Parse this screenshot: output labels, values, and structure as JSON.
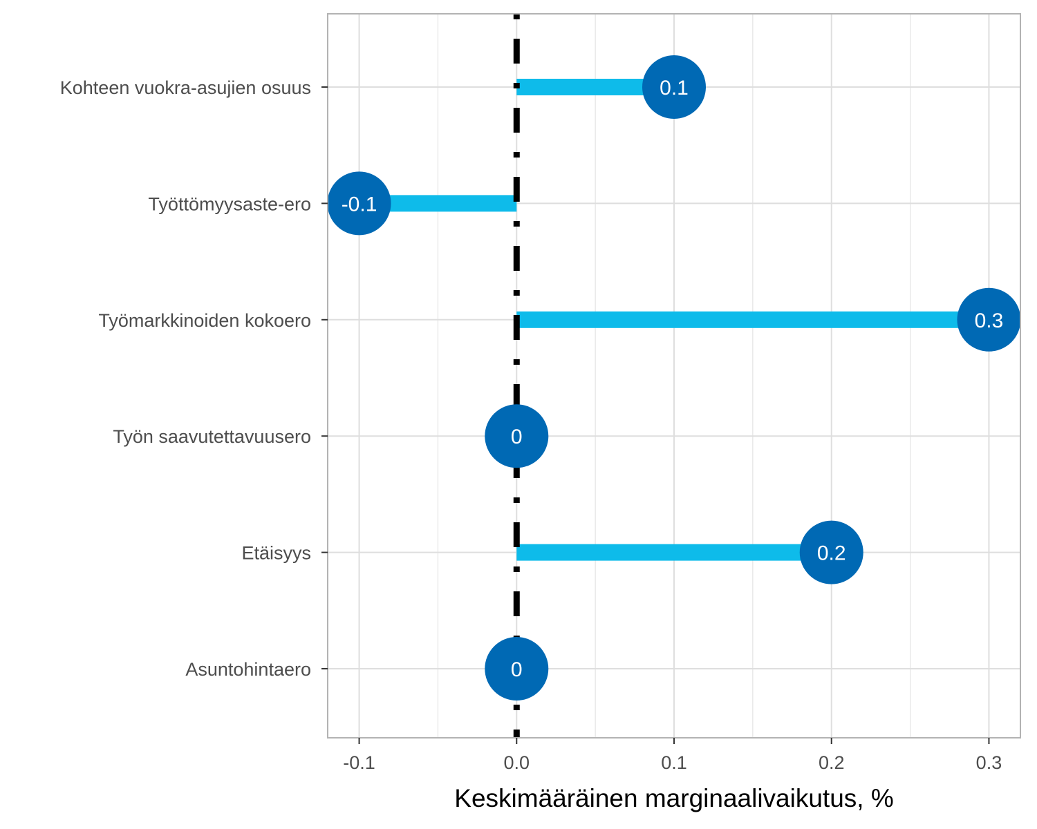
{
  "chart_data": {
    "type": "lollipop",
    "orientation": "horizontal",
    "title": "",
    "xlabel": "Keskimääräinen marginaalivaikutus, %",
    "ylabel": "",
    "xlim": [
      -0.12,
      0.32
    ],
    "x_ticks": [
      -0.1,
      0.0,
      0.1,
      0.2,
      0.3
    ],
    "x_tick_labels": [
      "-0.1",
      "0.0",
      "0.1",
      "0.2",
      "0.3"
    ],
    "reference_line": 0,
    "grid": true,
    "categories": [
      "Kohteen vuokra-asujien osuus",
      "Työttömyysaste-ero",
      "Työmarkkinoiden kokoero",
      "Työn saavutettavuusero",
      "Etäisyys",
      "Asuntohintaero"
    ],
    "values": [
      0.1,
      -0.1,
      0.3,
      0,
      0.2,
      0
    ],
    "data_labels": [
      "0.1",
      "-0.1",
      "0.3",
      "0",
      "0.2",
      "0"
    ],
    "colors": {
      "segment": "#0ebbea",
      "point": "#0069b4",
      "reference": "#000000",
      "grid": "#dedede",
      "panel_border": "#b3b3b3"
    }
  }
}
